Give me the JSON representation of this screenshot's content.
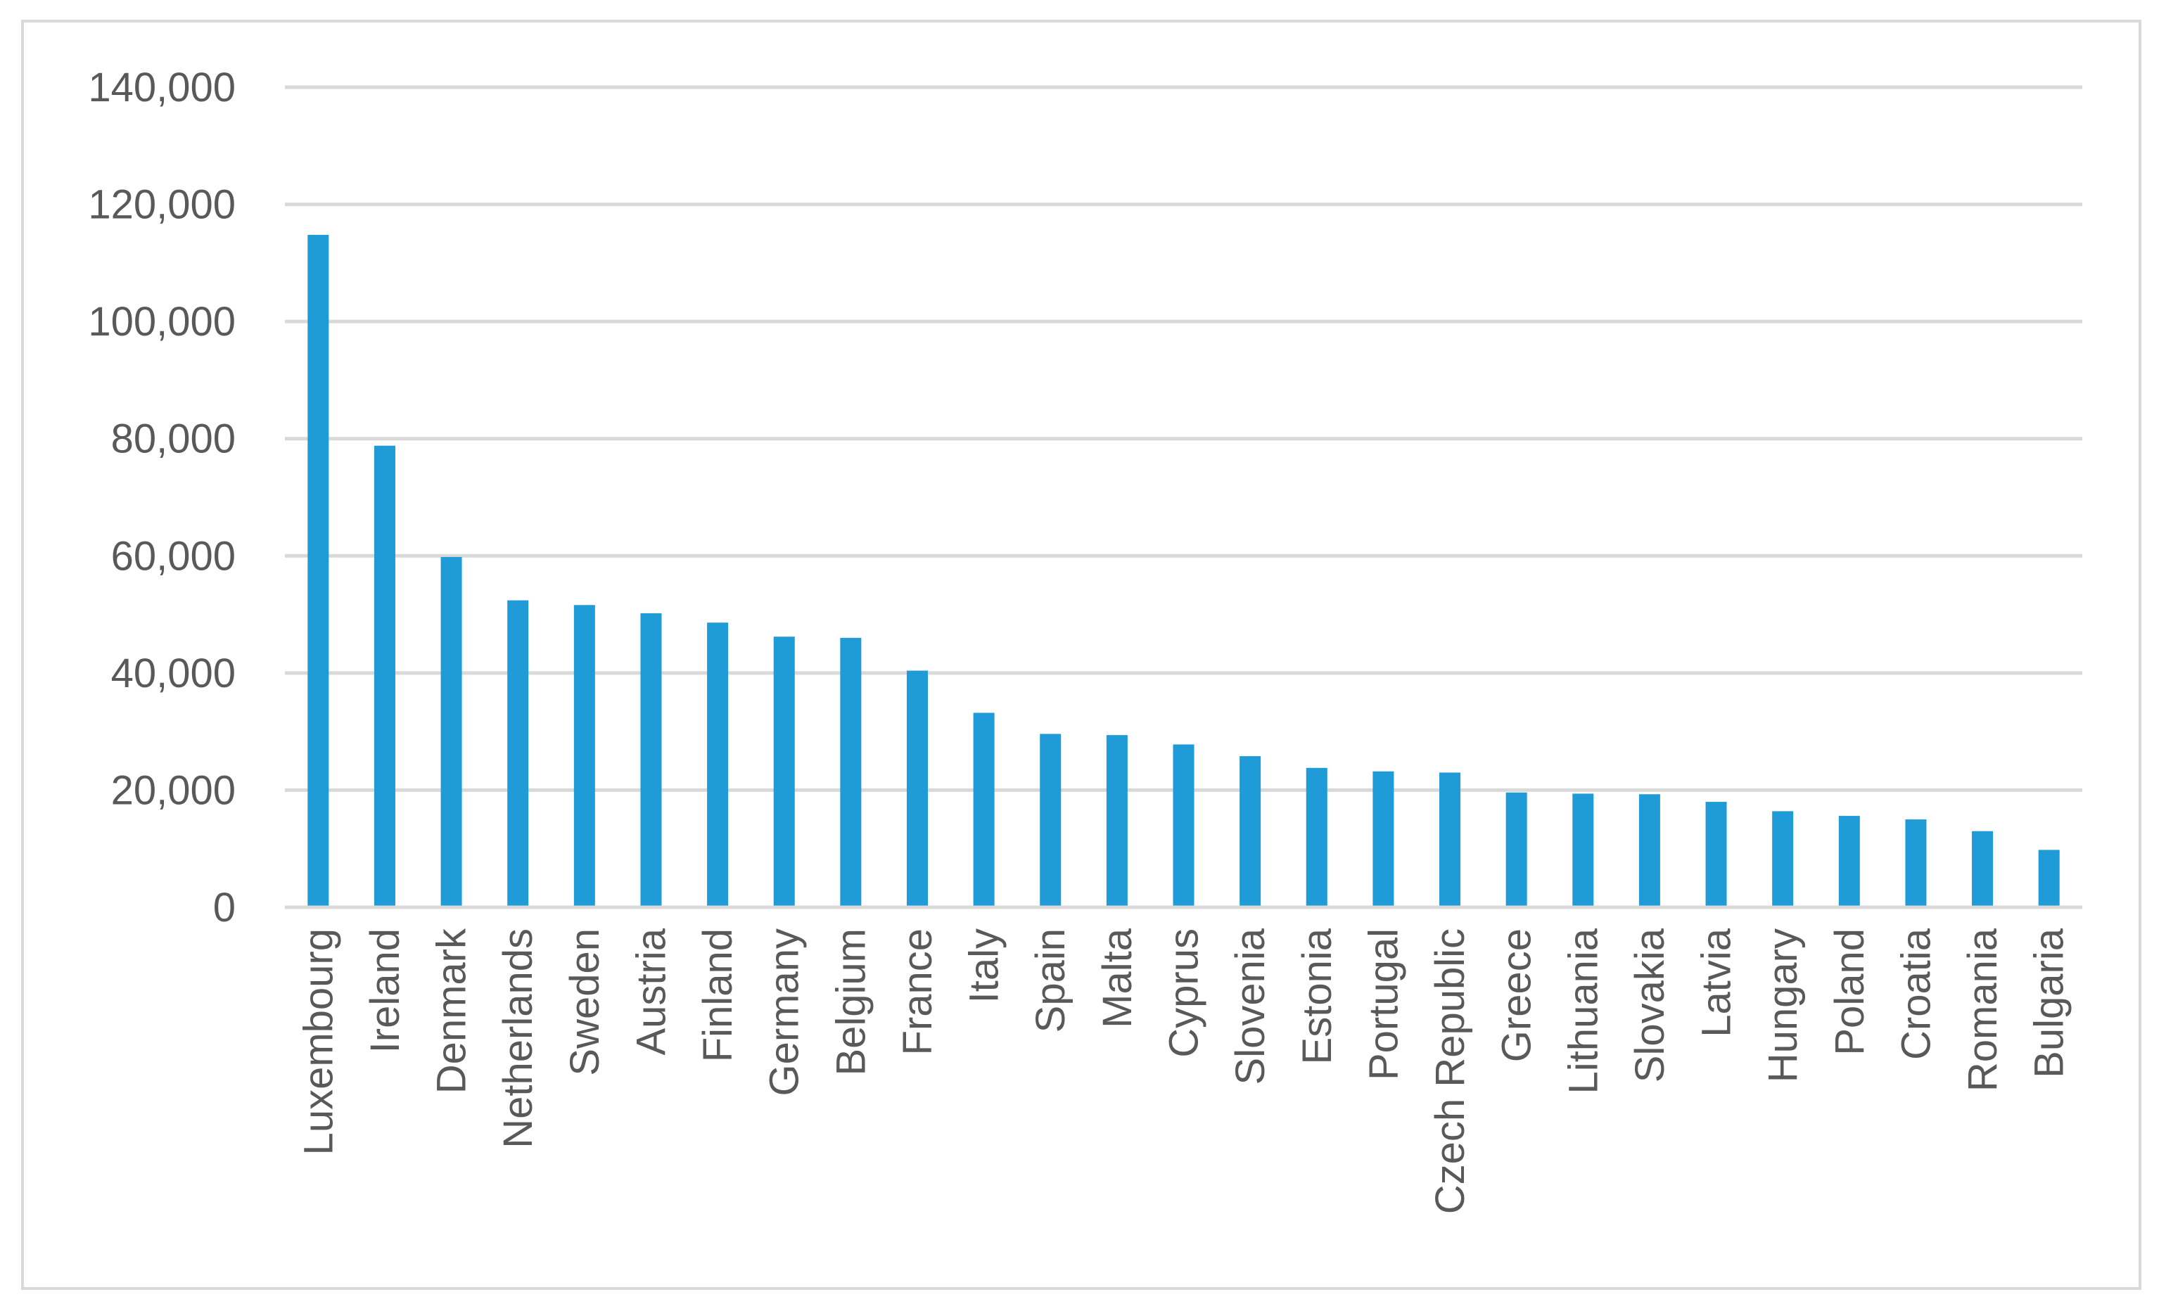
{
  "chart_data": {
    "type": "bar",
    "title": "",
    "xlabel": "",
    "ylabel": "",
    "ylim": [
      0,
      140000
    ],
    "yticks": [
      0,
      20000,
      40000,
      60000,
      80000,
      100000,
      120000,
      140000
    ],
    "ytick_labels": [
      "0",
      "20,000",
      "40,000",
      "60,000",
      "80,000",
      "100,000",
      "120,000",
      "140,000"
    ],
    "grid": true,
    "legend": "none",
    "bar_color": "#1f9bd7",
    "categories": [
      "Luxembourg",
      "Ireland",
      "Denmark",
      "Netherlands",
      "Sweden",
      "Austria",
      "Finland",
      "Germany",
      "Belgium",
      "France",
      "Italy",
      "Spain",
      "Malta",
      "Cyprus",
      "Slovenia",
      "Estonia",
      "Portugal",
      "Czech Republic",
      "Greece",
      "Lithuania",
      "Slovakia",
      "Latvia",
      "Hungary",
      "Poland",
      "Croatia",
      "Romania",
      "Bulgaria"
    ],
    "values": [
      114800,
      78800,
      59800,
      52400,
      51600,
      50200,
      48600,
      46200,
      46000,
      40400,
      33200,
      29600,
      29400,
      27800,
      25800,
      23800,
      23200,
      23000,
      19600,
      19400,
      19300,
      18000,
      16400,
      15600,
      15000,
      13000,
      9800
    ]
  }
}
